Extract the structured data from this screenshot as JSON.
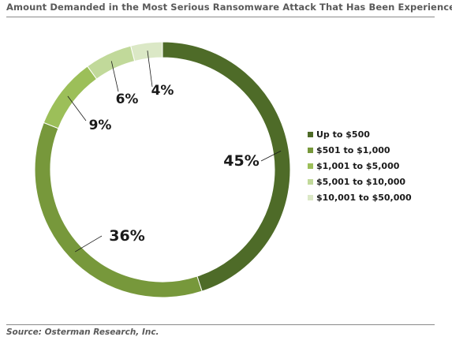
{
  "title": "Amount Demanded in the Most Serious Ransomware Attack That Has Been Experienced",
  "source": "Source: Osterman Research, Inc.",
  "chart_data": {
    "type": "pie",
    "style": "donut",
    "title": "Amount Demanded in the Most Serious Ransomware Attack That Has Been Experienced",
    "categories": [
      "Up to $500",
      "$501 to $1,000",
      "$1,001 to $5,000",
      "$5,001 to $10,000",
      "$10,001 to $50,000"
    ],
    "values": [
      45,
      36,
      9,
      6,
      4
    ],
    "value_labels": [
      "45%",
      "36%",
      "9%",
      "6%",
      "4%"
    ],
    "colors": [
      "#4e6b28",
      "#77983b",
      "#9cbf59",
      "#c1d99a",
      "#dbe8c6"
    ],
    "legend_position": "right"
  }
}
